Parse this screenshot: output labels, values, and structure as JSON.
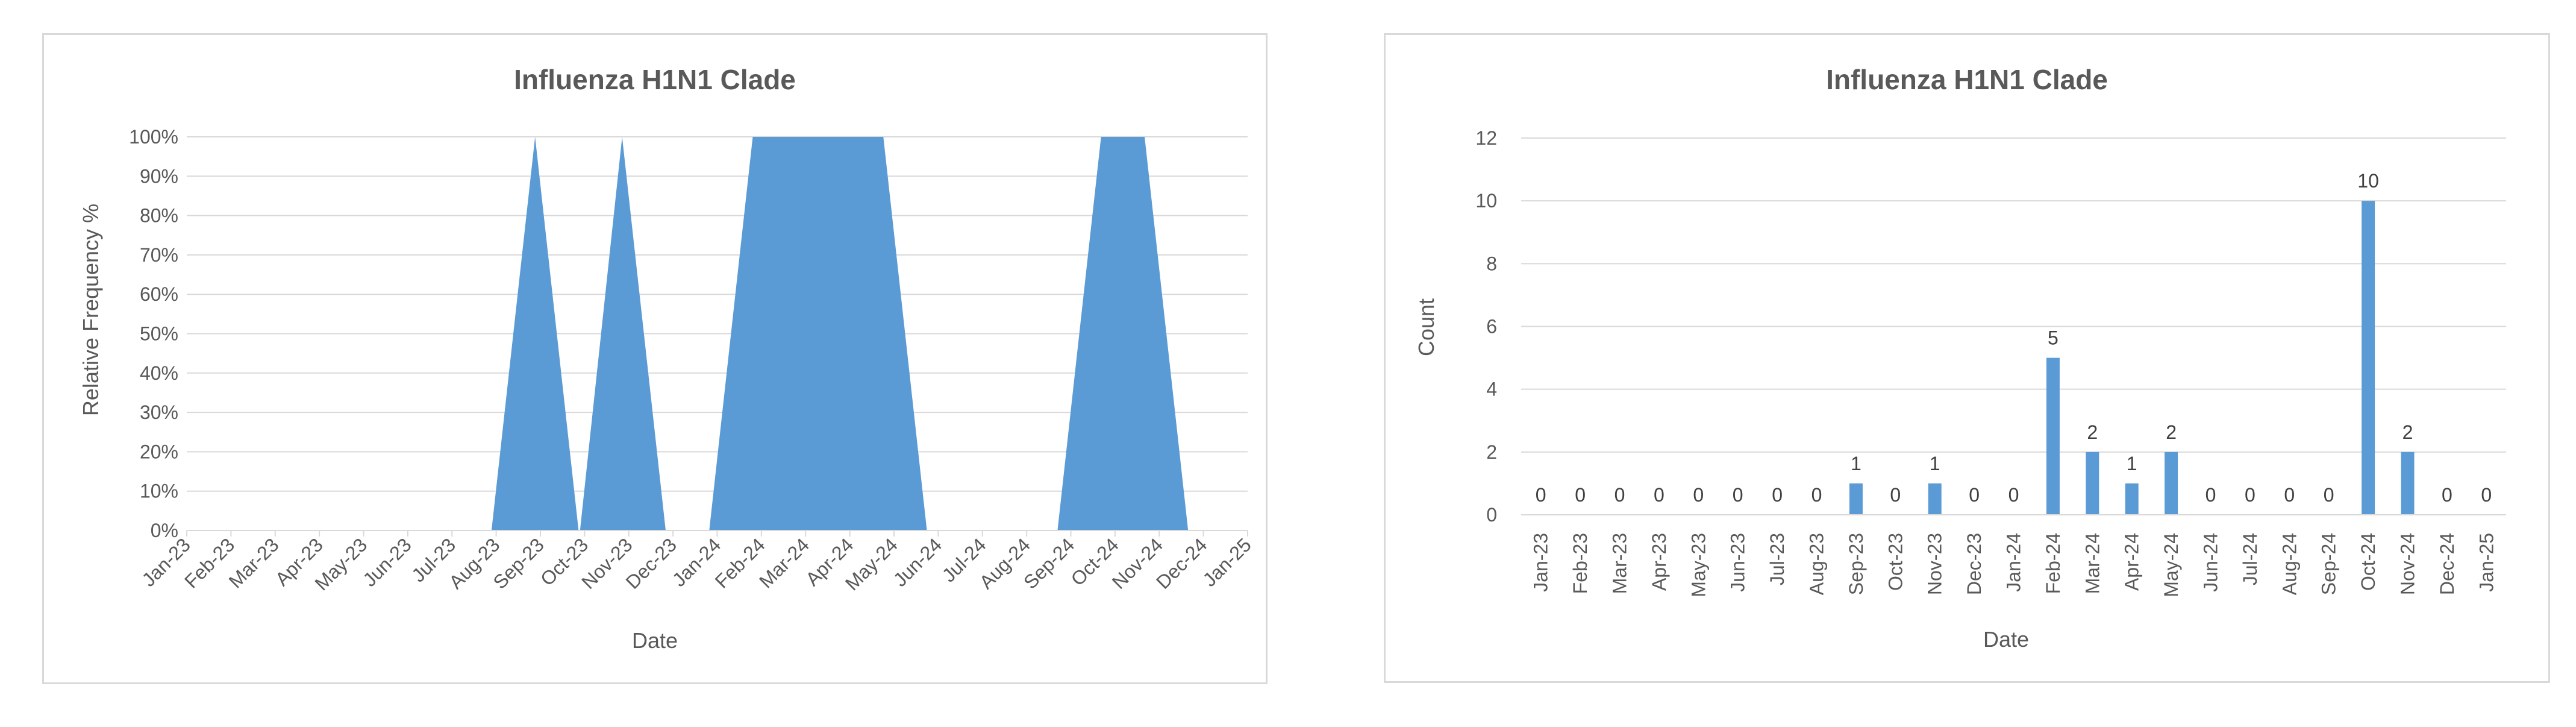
{
  "colors": {
    "series": "#5b9bd5",
    "grid": "#d9d9d9",
    "text": "#595959"
  },
  "chart_data": [
    {
      "type": "area",
      "title": "Influenza H1N1 Clade",
      "xlabel": "Date",
      "ylabel": "Relative Frequency %",
      "x": [
        "Jan-23",
        "Feb-23",
        "Mar-23",
        "Apr-23",
        "May-23",
        "Jun-23",
        "Jul-23",
        "Aug-23",
        "Sep-23",
        "Oct-23",
        "Nov-23",
        "Dec-23",
        "Jan-24",
        "Feb-24",
        "Mar-24",
        "Apr-24",
        "May-24",
        "Jun-24",
        "Jul-24",
        "Aug-24",
        "Sep-24",
        "Oct-24",
        "Nov-24",
        "Dec-24",
        "Jan-25"
      ],
      "y_ticks": [
        "0%",
        "10%",
        "20%",
        "30%",
        "40%",
        "50%",
        "60%",
        "70%",
        "80%",
        "90%",
        "100%"
      ],
      "ylim": [
        0,
        100
      ],
      "grid": true,
      "series": [
        {
          "values": [
            {
              "x": "2023-01-01",
              "y": 0
            },
            {
              "x": "2023-01-31",
              "y": 0
            },
            {
              "x": "2023-03-02",
              "y": 0
            },
            {
              "x": "2023-04-01",
              "y": 0
            },
            {
              "x": "2023-05-01",
              "y": 0
            },
            {
              "x": "2023-05-31",
              "y": 0
            },
            {
              "x": "2023-06-30",
              "y": 0
            },
            {
              "x": "2023-07-30",
              "y": 0
            },
            {
              "x": "2023-08-29",
              "y": 100
            },
            {
              "x": "2023-09-28",
              "y": 0
            },
            {
              "x": "2023-09-29",
              "y": 0
            },
            {
              "x": "2023-10-28",
              "y": 100
            },
            {
              "x": "2023-11-27",
              "y": 0
            },
            {
              "x": "2023-12-27",
              "y": 0
            },
            {
              "x": "2024-01-26",
              "y": 100
            },
            {
              "x": "2024-02-25",
              "y": 100
            },
            {
              "x": "2024-03-26",
              "y": 100
            },
            {
              "x": "2024-04-25",
              "y": 100
            },
            {
              "x": "2024-05-25",
              "y": 0
            },
            {
              "x": "2024-06-24",
              "y": 0
            },
            {
              "x": "2024-07-24",
              "y": 0
            },
            {
              "x": "2024-08-23",
              "y": 0
            },
            {
              "x": "2024-09-22",
              "y": 100
            },
            {
              "x": "2024-10-22",
              "y": 100
            },
            {
              "x": "2024-11-21",
              "y": 0
            },
            {
              "x": "2024-12-21",
              "y": 0
            }
          ]
        }
      ]
    },
    {
      "type": "bar",
      "title": "Influenza H1N1 Clade",
      "xlabel": "Date",
      "ylabel": "Count",
      "categories": [
        "Jan-23",
        "Feb-23",
        "Mar-23",
        "Apr-23",
        "May-23",
        "Jun-23",
        "Jul-23",
        "Aug-23",
        "Sep-23",
        "Oct-23",
        "Nov-23",
        "Dec-23",
        "Jan-24",
        "Feb-24",
        "Mar-24",
        "Apr-24",
        "May-24",
        "Jun-24",
        "Jul-24",
        "Aug-24",
        "Sep-24",
        "Oct-24",
        "Nov-24",
        "Dec-24",
        "Jan-25"
      ],
      "values": [
        0,
        0,
        0,
        0,
        0,
        0,
        0,
        0,
        1,
        0,
        1,
        0,
        0,
        5,
        2,
        1,
        2,
        0,
        0,
        0,
        0,
        10,
        2,
        0,
        0
      ],
      "y_ticks": [
        "0",
        "2",
        "4",
        "6",
        "8",
        "10",
        "12"
      ],
      "ylim": [
        0,
        12
      ],
      "grid": true,
      "data_labels": true
    }
  ]
}
